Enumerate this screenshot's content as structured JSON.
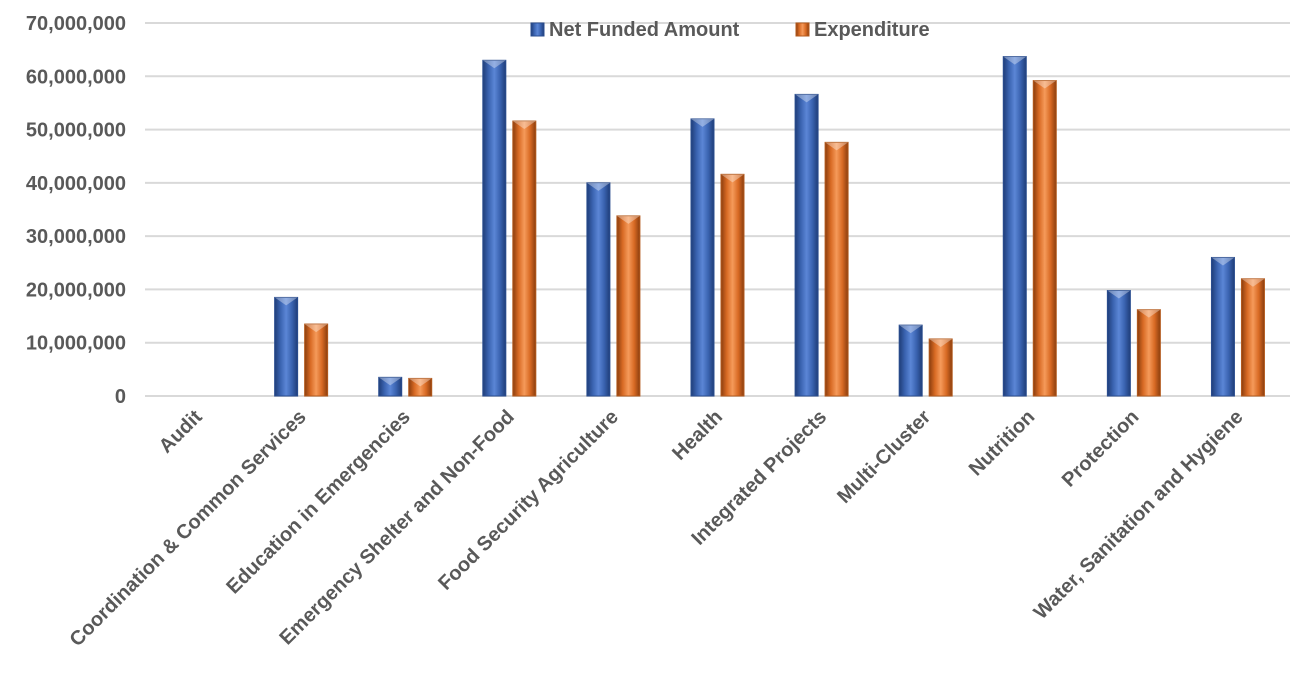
{
  "chart_data": {
    "type": "bar",
    "title": "",
    "xlabel": "",
    "ylabel": "",
    "ylim": [
      0,
      70000000
    ],
    "yticks": [
      0,
      10000000,
      20000000,
      30000000,
      40000000,
      50000000,
      60000000,
      70000000
    ],
    "ytick_labels": [
      "0",
      "10,000,000",
      "20,000,000",
      "30,000,000",
      "40,000,000",
      "50,000,000",
      "60,000,000",
      "70,000,000"
    ],
    "grid": true,
    "legend_position": "top",
    "categories": [
      "Audit",
      "Coordination & Common Services",
      "Education in Emergencies",
      "Emergency Shelter and Non-Food",
      "Food Security Agriculture",
      "Health",
      "Integrated Projects",
      "Multi-Cluster",
      "Nutrition",
      "Protection",
      "Water, Sanitation and Hygiene"
    ],
    "series": [
      {
        "name": "Net Funded Amount",
        "color": "#4472C4",
        "values": [
          0,
          18500000,
          3500000,
          63000000,
          40000000,
          52000000,
          56600000,
          13300000,
          63700000,
          19800000,
          26000000
        ]
      },
      {
        "name": "Expenditure",
        "color": "#ED7D31",
        "values": [
          0,
          13500000,
          3300000,
          51600000,
          33800000,
          41600000,
          47600000,
          10700000,
          59200000,
          16200000,
          22000000
        ]
      }
    ]
  }
}
